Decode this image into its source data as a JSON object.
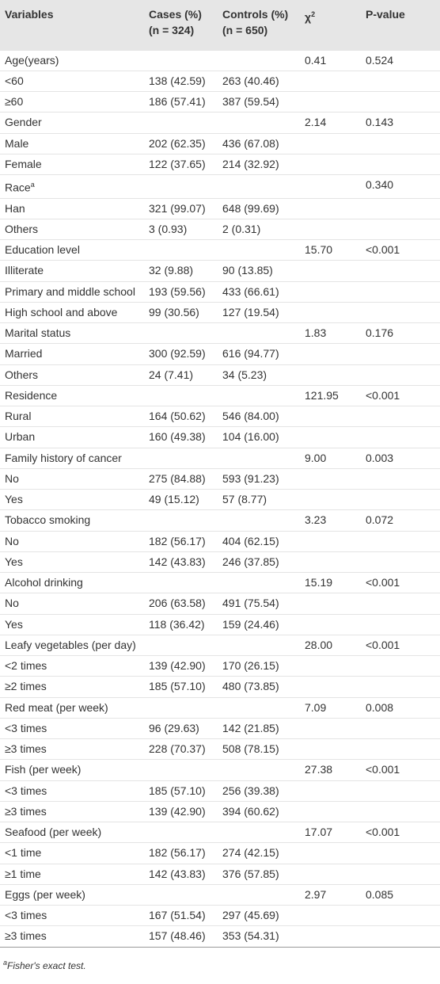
{
  "table": {
    "header": [
      [
        "Variables"
      ],
      [
        "Cases (%)",
        "(n = 324)"
      ],
      [
        "Controls (%)",
        "(n = 650)"
      ],
      [
        {
          "text": "χ",
          "sup": "2"
        }
      ],
      [
        "P-value"
      ]
    ],
    "rows": [
      [
        "Age(years)",
        null,
        null,
        "0.41",
        "0.524"
      ],
      [
        "<60",
        "138 (42.59)",
        "263 (40.46)",
        null,
        null
      ],
      [
        "≥60",
        "186 (57.41)",
        "387 (59.54)",
        null,
        null
      ],
      [
        "Gender",
        null,
        null,
        "2.14",
        "0.143"
      ],
      [
        "Male",
        "202 (62.35)",
        "436 (67.08)",
        null,
        null
      ],
      [
        "Female",
        "122 (37.65)",
        "214 (32.92)",
        null,
        null
      ],
      [
        {
          "text": "Race",
          "sup": "a"
        },
        null,
        null,
        null,
        "0.340"
      ],
      [
        "Han",
        "321 (99.07)",
        "648 (99.69)",
        null,
        null
      ],
      [
        "Others",
        "3 (0.93)",
        "2 (0.31)",
        null,
        null
      ],
      [
        "Education level",
        null,
        null,
        "15.70",
        "<0.001"
      ],
      [
        "Illiterate",
        "32 (9.88)",
        "90 (13.85)",
        null,
        null
      ],
      [
        "Primary and middle school",
        "193 (59.56)",
        "433 (66.61)",
        null,
        null
      ],
      [
        "High school and above",
        "99 (30.56)",
        "127 (19.54)",
        null,
        null
      ],
      [
        "Marital status",
        null,
        null,
        "1.83",
        "0.176"
      ],
      [
        "Married",
        "300 (92.59)",
        "616 (94.77)",
        null,
        null
      ],
      [
        "Others",
        "24 (7.41)",
        "34 (5.23)",
        null,
        null
      ],
      [
        "Residence",
        null,
        null,
        "121.95",
        "<0.001"
      ],
      [
        "Rural",
        "164 (50.62)",
        "546 (84.00)",
        null,
        null
      ],
      [
        "Urban",
        "160 (49.38)",
        "104 (16.00)",
        null,
        null
      ],
      [
        "Family history of cancer",
        null,
        null,
        "9.00",
        "0.003"
      ],
      [
        "No",
        "275 (84.88)",
        "593 (91.23)",
        null,
        null
      ],
      [
        "Yes",
        "49 (15.12)",
        "57 (8.77)",
        null,
        null
      ],
      [
        "Tobacco smoking",
        null,
        null,
        "3.23",
        "0.072"
      ],
      [
        "No",
        "182 (56.17)",
        "404 (62.15)",
        null,
        null
      ],
      [
        "Yes",
        "142 (43.83)",
        "246 (37.85)",
        null,
        null
      ],
      [
        "Alcohol drinking",
        null,
        null,
        "15.19",
        "<0.001"
      ],
      [
        "No",
        "206 (63.58)",
        "491 (75.54)",
        null,
        null
      ],
      [
        "Yes",
        "118 (36.42)",
        "159 (24.46)",
        null,
        null
      ],
      [
        "Leafy vegetables (per day)",
        null,
        null,
        "28.00",
        "<0.001"
      ],
      [
        "<2 times",
        "139 (42.90)",
        "170 (26.15)",
        null,
        null
      ],
      [
        "≥2 times",
        "185 (57.10)",
        "480 (73.85)",
        null,
        null
      ],
      [
        "Red meat (per week)",
        null,
        null,
        "7.09",
        "0.008"
      ],
      [
        "<3 times",
        "96 (29.63)",
        "142 (21.85)",
        null,
        null
      ],
      [
        "≥3 times",
        "228 (70.37)",
        "508 (78.15)",
        null,
        null
      ],
      [
        "Fish (per week)",
        null,
        null,
        "27.38",
        "<0.001"
      ],
      [
        "<3 times",
        "185 (57.10)",
        "256 (39.38)",
        null,
        null
      ],
      [
        "≥3 times",
        "139 (42.90)",
        "394 (60.62)",
        null,
        null
      ],
      [
        "Seafood (per week)",
        null,
        null,
        "17.07",
        "<0.001"
      ],
      [
        "<1 time",
        "182 (56.17)",
        "274 (42.15)",
        null,
        null
      ],
      [
        "≥1 time",
        "142 (43.83)",
        "376 (57.85)",
        null,
        null
      ],
      [
        "Eggs (per week)",
        null,
        null,
        "2.97",
        "0.085"
      ],
      [
        "<3 times",
        "167 (51.54)",
        "297 (45.69)",
        null,
        null
      ],
      [
        "≥3 times",
        "157 (48.46)",
        "353 (54.31)",
        null,
        null
      ]
    ],
    "footnote": {
      "sup": "a",
      "text": "Fisher's exact test."
    }
  }
}
